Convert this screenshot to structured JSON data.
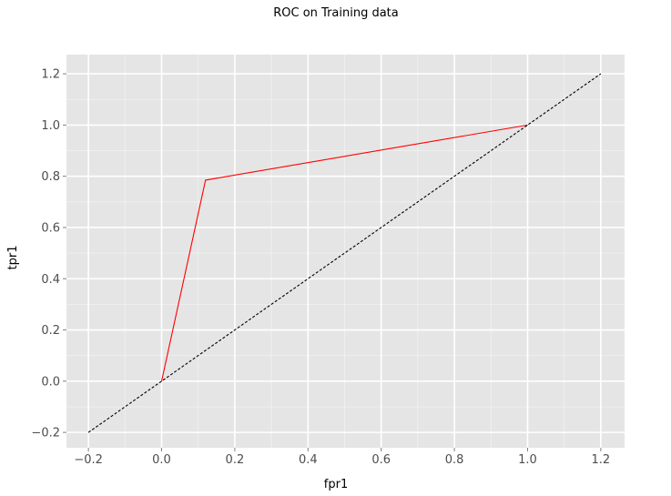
{
  "chart_data": {
    "type": "line",
    "title": "ROC on Training data",
    "xlabel": "fpr1",
    "ylabel": "tpr1",
    "xlim": [
      -0.26,
      1.265
    ],
    "ylim": [
      -0.26,
      1.275
    ],
    "x_ticks": [
      -0.2,
      0.0,
      0.2,
      0.4,
      0.6,
      0.8,
      1.0,
      1.2
    ],
    "y_ticks": [
      -0.2,
      0.0,
      0.2,
      0.4,
      0.6,
      0.8,
      1.0,
      1.2
    ],
    "x_tick_labels": [
      "−0.2",
      "0.0",
      "0.2",
      "0.4",
      "0.6",
      "0.8",
      "1.0",
      "1.2"
    ],
    "y_tick_labels": [
      "−0.2",
      "0.0",
      "0.2",
      "0.4",
      "0.6",
      "0.8",
      "1.0",
      "1.2"
    ],
    "grid": true,
    "background": "#e5e5e5",
    "series": [
      {
        "style": "solid",
        "color": "#ff0000",
        "x": [
          0.0,
          0.12,
          1.0
        ],
        "y": [
          0.0,
          0.785,
          1.0
        ]
      },
      {
        "style": "dashed",
        "color": "#000000",
        "x": [
          -0.2,
          1.2
        ],
        "y": [
          -0.2,
          1.2
        ]
      }
    ]
  }
}
